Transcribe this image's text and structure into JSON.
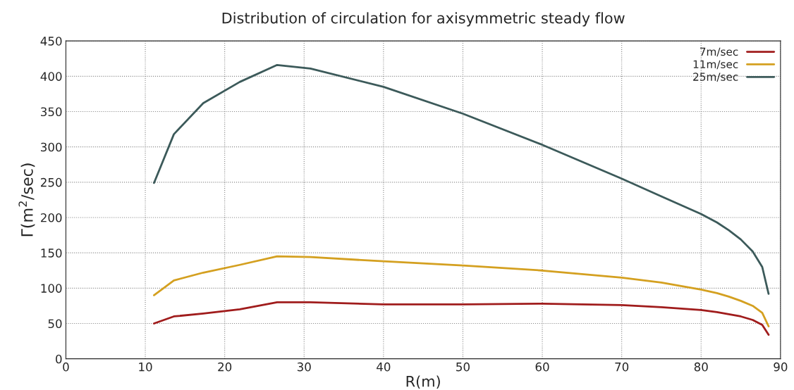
{
  "chart_data": {
    "type": "line",
    "title": "Distribution of circulation for axisymmetric steady flow",
    "xlabel": "R(m)",
    "ylabel": "Γ(m$^{2}$/sec)",
    "x": [
      11.1,
      13.6,
      17.3,
      21.9,
      26.6,
      30.8,
      40,
      50,
      60,
      70,
      75,
      80,
      82,
      83.5,
      85,
      86.5,
      87.7,
      88.5
    ],
    "series": [
      {
        "name": "7m/sec",
        "color": "#a01c1c",
        "values": [
          50,
          60,
          64,
          70,
          80,
          80,
          77,
          77,
          78,
          76,
          73,
          69,
          66,
          63,
          60,
          55,
          48,
          34
        ]
      },
      {
        "name": "11m/sec",
        "color": "#d4a020",
        "values": [
          90,
          111,
          122,
          133,
          145,
          144,
          138,
          132,
          125,
          115,
          108,
          98,
          93,
          88,
          82,
          75,
          65,
          46
        ]
      },
      {
        "name": "25m/sec",
        "color": "#3c5a5a",
        "values": [
          249,
          318,
          362,
          392,
          416,
          411,
          385,
          347,
          303,
          255,
          230,
          205,
          193,
          182,
          169,
          152,
          130,
          92
        ]
      }
    ],
    "xlim": [
      0,
      90
    ],
    "xticks": [
      0,
      10,
      20,
      30,
      40,
      50,
      60,
      70,
      80,
      90
    ],
    "ylim": [
      0,
      450
    ],
    "yticks": [
      0,
      50,
      100,
      150,
      200,
      250,
      300,
      350,
      400,
      450
    ],
    "grid": true,
    "legend": "top right",
    "marker": "none",
    "line_style": "solid"
  }
}
